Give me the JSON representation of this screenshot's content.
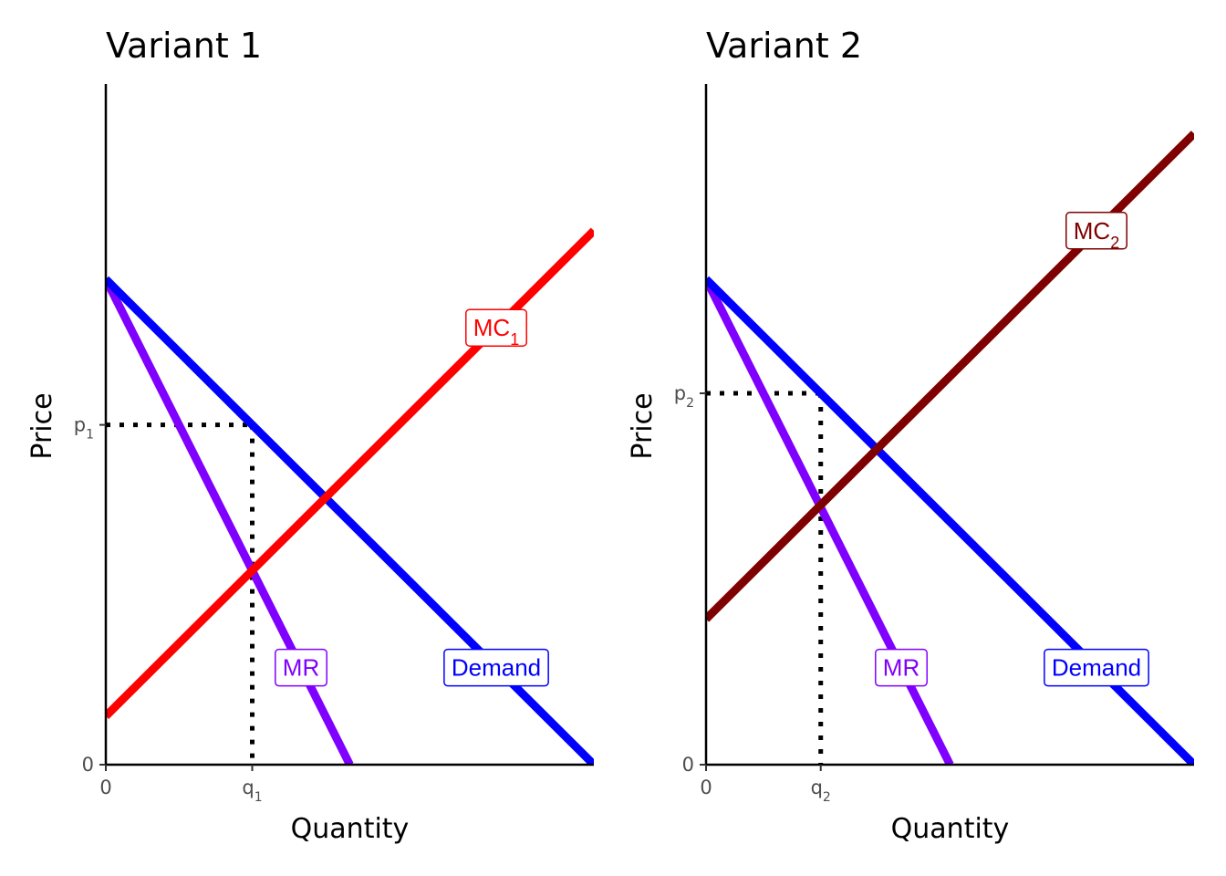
{
  "chart_data": [
    {
      "type": "line",
      "title": "Variant 1",
      "xlabel": "Quantity",
      "ylabel": "Price",
      "xlim": [
        0,
        1
      ],
      "ylim": [
        0,
        1
      ],
      "x_ticks": [
        {
          "value": 0,
          "label": "0"
        },
        {
          "value": 0.3,
          "label": "q",
          "sub": "1"
        }
      ],
      "y_ticks": [
        {
          "value": 0,
          "label": "0"
        },
        {
          "value": 0.7,
          "label": "p",
          "sub": "1"
        }
      ],
      "series": [
        {
          "name": "MR",
          "color": "#8000ff",
          "x": [
            0,
            0.5
          ],
          "y": [
            1,
            0
          ]
        },
        {
          "name": "Demand",
          "color": "#0000ff",
          "x": [
            0,
            1
          ],
          "y": [
            1,
            0
          ]
        },
        {
          "name": "MC",
          "sub": "1",
          "color": "#ff0000",
          "x": [
            0,
            1
          ],
          "y": [
            0.1,
            1.1
          ]
        }
      ],
      "labels": [
        {
          "text": "MR",
          "x": 0.4,
          "y": 0.2,
          "color": "#8000ff"
        },
        {
          "text": "Demand",
          "x": 0.8,
          "y": 0.2,
          "color": "#0000ff"
        },
        {
          "text": "MC",
          "sub": "1",
          "x": 0.8,
          "y": 0.9,
          "color": "#ff0000"
        }
      ],
      "guides": {
        "x": 0.3,
        "y": 0.7
      }
    },
    {
      "type": "line",
      "title": "Variant 2",
      "xlabel": "Quantity",
      "ylabel": "Price",
      "xlim": [
        0,
        1
      ],
      "ylim": [
        0,
        1
      ],
      "x_ticks": [
        {
          "value": 0,
          "label": "0"
        },
        {
          "value": 0.235,
          "label": "q",
          "sub": "2"
        }
      ],
      "y_ticks": [
        {
          "value": 0,
          "label": "0"
        },
        {
          "value": 0.765,
          "label": "p",
          "sub": "2"
        }
      ],
      "series": [
        {
          "name": "MR",
          "color": "#8000ff",
          "x": [
            0,
            0.5
          ],
          "y": [
            1,
            0
          ]
        },
        {
          "name": "Demand",
          "color": "#0000ff",
          "x": [
            0,
            1
          ],
          "y": [
            1,
            0
          ]
        },
        {
          "name": "MC",
          "sub": "2",
          "color": "#7f0000",
          "x": [
            0,
            1
          ],
          "y": [
            0.3,
            1.3
          ]
        }
      ],
      "labels": [
        {
          "text": "MR",
          "x": 0.4,
          "y": 0.2,
          "color": "#8000ff"
        },
        {
          "text": "Demand",
          "x": 0.8,
          "y": 0.2,
          "color": "#0000ff"
        },
        {
          "text": "MC",
          "sub": "2",
          "x": 0.8,
          "y": 1.1,
          "color": "#7f0000"
        }
      ],
      "guides": {
        "x": 0.235,
        "y": 0.765
      }
    }
  ]
}
